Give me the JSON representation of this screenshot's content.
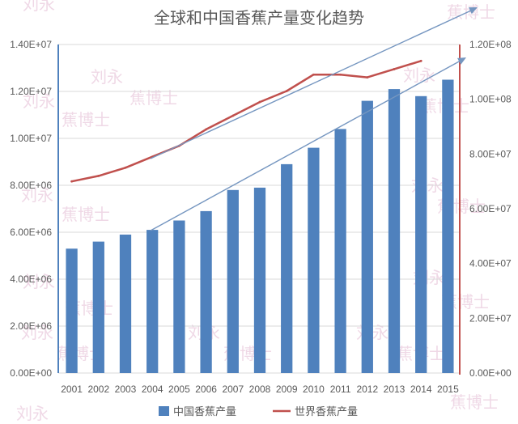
{
  "chart_data": {
    "type": "bar",
    "title": "全球和中国香蕉产量变化趋势",
    "xlabel": "",
    "ylabel": "",
    "y2label": "",
    "categories": [
      "2001",
      "2002",
      "2003",
      "2004",
      "2005",
      "2006",
      "2007",
      "2008",
      "2009",
      "2010",
      "2011",
      "2012",
      "2013",
      "2014",
      "2015"
    ],
    "series": [
      {
        "name": "中国香蕉产量",
        "type": "bar",
        "axis": "left",
        "values": [
          5300000,
          5600000,
          5900000,
          6100000,
          6500000,
          6900000,
          7800000,
          7900000,
          8900000,
          9600000,
          10400000,
          11600000,
          12100000,
          11800000,
          12500000
        ]
      },
      {
        "name": "世界香蕉产量",
        "type": "line",
        "axis": "right",
        "values": [
          70000000,
          72000000,
          75000000,
          79000000,
          83000000,
          89000000,
          94000000,
          99000000,
          103000000,
          109000000,
          109000000,
          108000000,
          111000000,
          114000000,
          null
        ]
      }
    ],
    "ylim": [
      0,
      14000000
    ],
    "y2lim": [
      0,
      120000000
    ],
    "yticks": [
      "0.00E+00",
      "2.00E+06",
      "4.00E+06",
      "6.00E+06",
      "8.00E+06",
      "1.00E+07",
      "1.20E+07",
      "1.40E+07"
    ],
    "y2ticks": [
      "0.00E+00",
      "2.00E+07",
      "4.00E+07",
      "6.00E+07",
      "8.00E+07",
      "1.00E+08",
      "1.20E+08"
    ],
    "grid": true,
    "legend": "bottom",
    "colors": {
      "bar": "#4f81bd",
      "line": "#c0504d",
      "left_axis": "#4f81bd",
      "right_axis": "#c0504d",
      "grid": "#d9d9d9",
      "trend_arrow": "#7596c0"
    }
  },
  "watermark": {
    "name": "刘永",
    "brand": "蕉博士"
  }
}
